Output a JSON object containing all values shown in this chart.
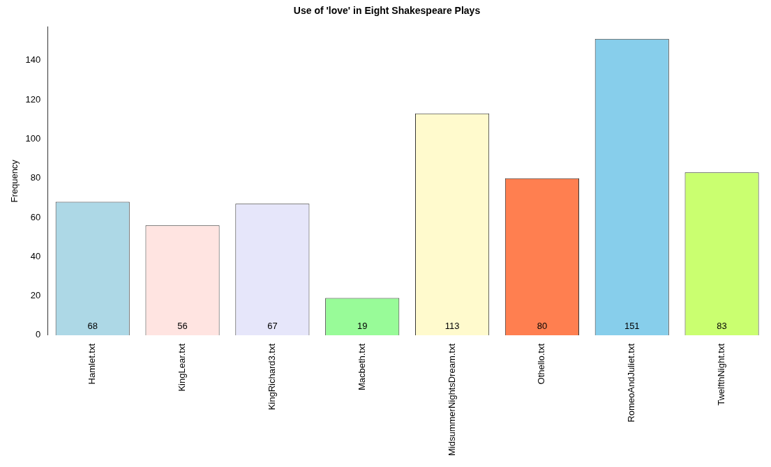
{
  "chart_data": {
    "type": "bar",
    "title": "Use of 'love' in Eight Shakespeare Plays",
    "ylabel": "Frequency",
    "categories": [
      "Hamlet.txt",
      "KingLear.txt",
      "KingRichard3.txt",
      "Macbeth.txt",
      "MidsummerNightsDream.txt",
      "Othello.txt",
      "RomeoAndJuliet.txt",
      "TwelfthNight.txt"
    ],
    "values": [
      68,
      56,
      67,
      19,
      113,
      80,
      151,
      83
    ],
    "colors": [
      "#add8e6",
      "#ffe4e1",
      "#e6e6fa",
      "#98fb98",
      "#fffacd",
      "#ff7f50",
      "#87ceeb",
      "#caff70"
    ],
    "ylim": [
      0,
      157
    ],
    "yticks": [
      0,
      20,
      40,
      60,
      80,
      100,
      120,
      140
    ],
    "grid": false,
    "legend": false,
    "data_labels": true
  }
}
